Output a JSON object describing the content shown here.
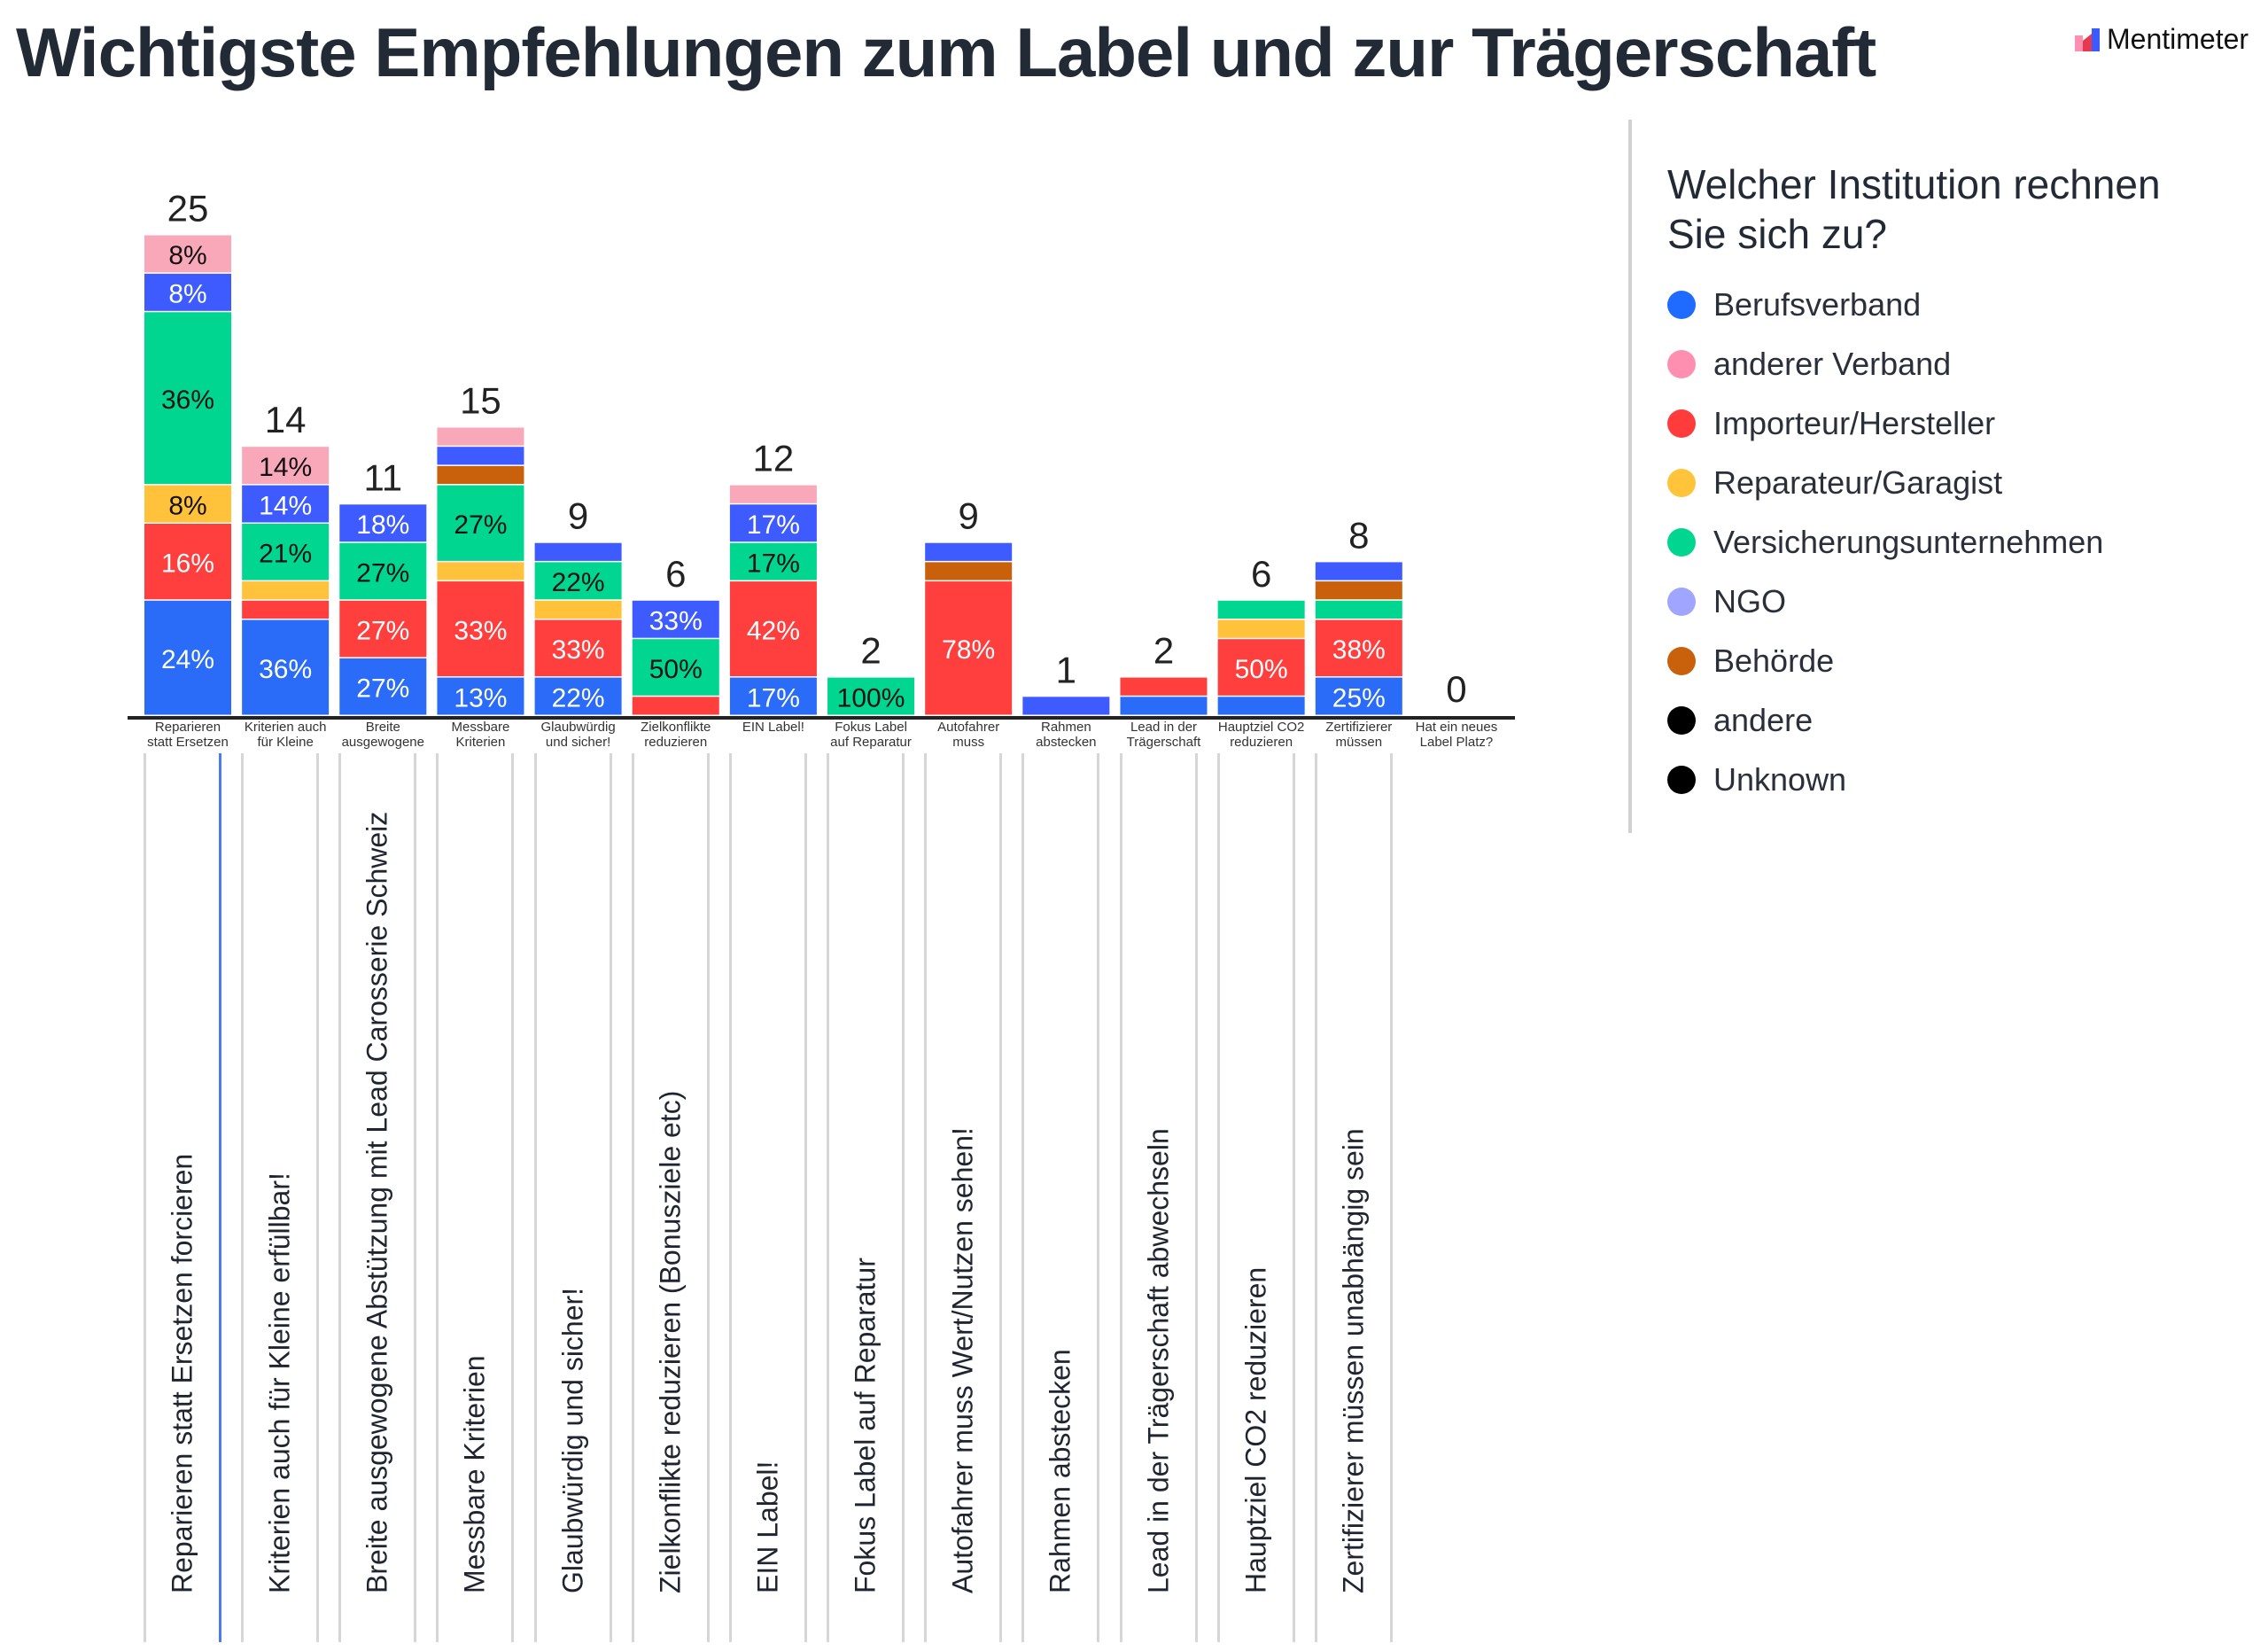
{
  "title": "Wichtigste Empfehlungen zum Label und zur Trägerschaft",
  "brand": "Mentimeter",
  "legend": {
    "title": "Welcher Institution rechnen Sie sich zu?",
    "items": [
      {
        "label": "Berufsverband",
        "color": "#1f6bff"
      },
      {
        "label": "anderer Verband",
        "color": "#ff8fb0"
      },
      {
        "label": "Importeur/Hersteller",
        "color": "#ff3b3b"
      },
      {
        "label": "Reparateur/Garagist",
        "color": "#ffc43a"
      },
      {
        "label": "Versicherungsunternehmen",
        "color": "#00d68f"
      },
      {
        "label": "NGO",
        "color": "#a0a6ff"
      },
      {
        "label": "Behörde",
        "color": "#c9600c"
      },
      {
        "label": "andere",
        "color": "#000000"
      },
      {
        "label": "Unknown",
        "color": "#000000"
      }
    ]
  },
  "chart_data": {
    "type": "bar",
    "stacked": true,
    "legend_position": "right",
    "grid": false,
    "segment_colors": {
      "Berufsverband": "#2a6cf8",
      "Importeur/Hersteller": "#ff3e3e",
      "Reparateur/Garagist": "#ffc23a",
      "Versicherungsunternehmen": "#00d68f",
      "Behörde": "#c9600c",
      "NGO": "#3d5bff",
      "anderer Verband": "#f9a8ba"
    },
    "bars": [
      {
        "short": [
          "Reparieren",
          "statt Ersetzen"
        ],
        "full": "Reparieren statt Ersetzen forcieren",
        "total": "25",
        "segments": [
          {
            "cat": "Berufsverband",
            "count": 6,
            "label": "24%"
          },
          {
            "cat": "Importeur/Hersteller",
            "count": 4,
            "label": "16%"
          },
          {
            "cat": "Reparateur/Garagist",
            "count": 2,
            "label": "8%"
          },
          {
            "cat": "Versicherungsunternehmen",
            "count": 9,
            "label": "36%"
          },
          {
            "cat": "NGO",
            "count": 2,
            "label": "8%"
          },
          {
            "cat": "anderer Verband",
            "count": 2,
            "label": "8%"
          }
        ]
      },
      {
        "short": [
          "Kriterien auch",
          "für Kleine"
        ],
        "full": "Kriterien auch für Kleine erfüllbar!",
        "total": "14",
        "segments": [
          {
            "cat": "Berufsverband",
            "count": 5,
            "label": "36%"
          },
          {
            "cat": "Importeur/Hersteller",
            "count": 1,
            "label": ""
          },
          {
            "cat": "Reparateur/Garagist",
            "count": 1,
            "label": ""
          },
          {
            "cat": "Versicherungsunternehmen",
            "count": 3,
            "label": "21%"
          },
          {
            "cat": "NGO",
            "count": 2,
            "label": "14%"
          },
          {
            "cat": "anderer Verband",
            "count": 2,
            "label": "14%"
          }
        ]
      },
      {
        "short": [
          "Breite",
          "ausgewogene"
        ],
        "full": "Breite ausgewogene Abstützung mit Lead Carosserie Schweiz",
        "total": "11",
        "segments": [
          {
            "cat": "Berufsverband",
            "count": 3,
            "label": "27%"
          },
          {
            "cat": "Importeur/Hersteller",
            "count": 3,
            "label": "27%"
          },
          {
            "cat": "Versicherungsunternehmen",
            "count": 3,
            "label": "27%"
          },
          {
            "cat": "NGO",
            "count": 2,
            "label": "18%"
          }
        ]
      },
      {
        "short": [
          "Messbare",
          "Kriterien"
        ],
        "full": "Messbare Kriterien",
        "total": "15",
        "segments": [
          {
            "cat": "Berufsverband",
            "count": 2,
            "label": "13%"
          },
          {
            "cat": "Importeur/Hersteller",
            "count": 5,
            "label": "33%"
          },
          {
            "cat": "Reparateur/Garagist",
            "count": 1,
            "label": ""
          },
          {
            "cat": "Versicherungsunternehmen",
            "count": 4,
            "label": "27%"
          },
          {
            "cat": "Behörde",
            "count": 1,
            "label": ""
          },
          {
            "cat": "NGO",
            "count": 1,
            "label": ""
          },
          {
            "cat": "anderer Verband",
            "count": 1,
            "label": ""
          }
        ]
      },
      {
        "short": [
          "Glaubwürdig",
          "und sicher!"
        ],
        "full": "Glaubwürdig und sicher!",
        "total": "9",
        "segments": [
          {
            "cat": "Berufsverband",
            "count": 2,
            "label": "22%"
          },
          {
            "cat": "Importeur/Hersteller",
            "count": 3,
            "label": "33%"
          },
          {
            "cat": "Reparateur/Garagist",
            "count": 1,
            "label": ""
          },
          {
            "cat": "Versicherungsunternehmen",
            "count": 2,
            "label": "22%"
          },
          {
            "cat": "NGO",
            "count": 1,
            "label": ""
          }
        ]
      },
      {
        "short": [
          "Zielkonflikte",
          "reduzieren"
        ],
        "full": "Zielkonflikte reduzieren (Bonusziele etc)",
        "total": "6",
        "segments": [
          {
            "cat": "Importeur/Hersteller",
            "count": 1,
            "label": ""
          },
          {
            "cat": "Versicherungsunternehmen",
            "count": 3,
            "label": "50%"
          },
          {
            "cat": "NGO",
            "count": 2,
            "label": "33%"
          }
        ]
      },
      {
        "short": [
          "EIN Label!",
          ""
        ],
        "full": "EIN Label!",
        "total": "12",
        "segments": [
          {
            "cat": "Berufsverband",
            "count": 2,
            "label": "17%"
          },
          {
            "cat": "Importeur/Hersteller",
            "count": 5,
            "label": "42%"
          },
          {
            "cat": "Versicherungsunternehmen",
            "count": 2,
            "label": "17%"
          },
          {
            "cat": "NGO",
            "count": 2,
            "label": "17%"
          },
          {
            "cat": "anderer Verband",
            "count": 1,
            "label": ""
          }
        ]
      },
      {
        "short": [
          "Fokus Label",
          "auf Reparatur"
        ],
        "full": "Fokus Label auf Reparatur",
        "total": "2",
        "segments": [
          {
            "cat": "Versicherungsunternehmen",
            "count": 2,
            "label": "100%"
          }
        ]
      },
      {
        "short": [
          "Autofahrer",
          "muss"
        ],
        "full": "Autofahrer muss Wert/Nutzen sehen!",
        "total": "9",
        "segments": [
          {
            "cat": "Importeur/Hersteller",
            "count": 7,
            "label": "78%"
          },
          {
            "cat": "Behörde",
            "count": 1,
            "label": ""
          },
          {
            "cat": "NGO",
            "count": 1,
            "label": ""
          }
        ]
      },
      {
        "short": [
          "Rahmen",
          "abstecken"
        ],
        "full": "Rahmen abstecken",
        "total": "1",
        "segments": [
          {
            "cat": "NGO",
            "count": 1,
            "label": ""
          }
        ]
      },
      {
        "short": [
          "Lead in der",
          "Trägerschaft"
        ],
        "full": "Lead in der Trägerschaft abwechseln",
        "total": "2",
        "segments": [
          {
            "cat": "Berufsverband",
            "count": 1,
            "label": ""
          },
          {
            "cat": "Importeur/Hersteller",
            "count": 1,
            "label": ""
          }
        ]
      },
      {
        "short": [
          "Hauptziel CO2",
          "reduzieren"
        ],
        "full": "Hauptziel CO2 reduzieren",
        "total": "6",
        "segments": [
          {
            "cat": "Berufsverband",
            "count": 1,
            "label": ""
          },
          {
            "cat": "Importeur/Hersteller",
            "count": 3,
            "label": "50%"
          },
          {
            "cat": "Reparateur/Garagist",
            "count": 1,
            "label": ""
          },
          {
            "cat": "Versicherungsunternehmen",
            "count": 1,
            "label": ""
          }
        ]
      },
      {
        "short": [
          "Zertifizierer",
          "müssen"
        ],
        "full": "Zertifizierer müssen unabhängig sein",
        "total": "8",
        "segments": [
          {
            "cat": "Berufsverband",
            "count": 2,
            "label": "25%"
          },
          {
            "cat": "Importeur/Hersteller",
            "count": 3,
            "label": "38%"
          },
          {
            "cat": "Versicherungsunternehmen",
            "count": 1,
            "label": ""
          },
          {
            "cat": "Behörde",
            "count": 1,
            "label": ""
          },
          {
            "cat": "NGO",
            "count": 1,
            "label": ""
          }
        ]
      },
      {
        "short": [
          "Hat ein neues",
          "Label Platz?"
        ],
        "full": "",
        "total": "0",
        "segments": []
      }
    ]
  }
}
